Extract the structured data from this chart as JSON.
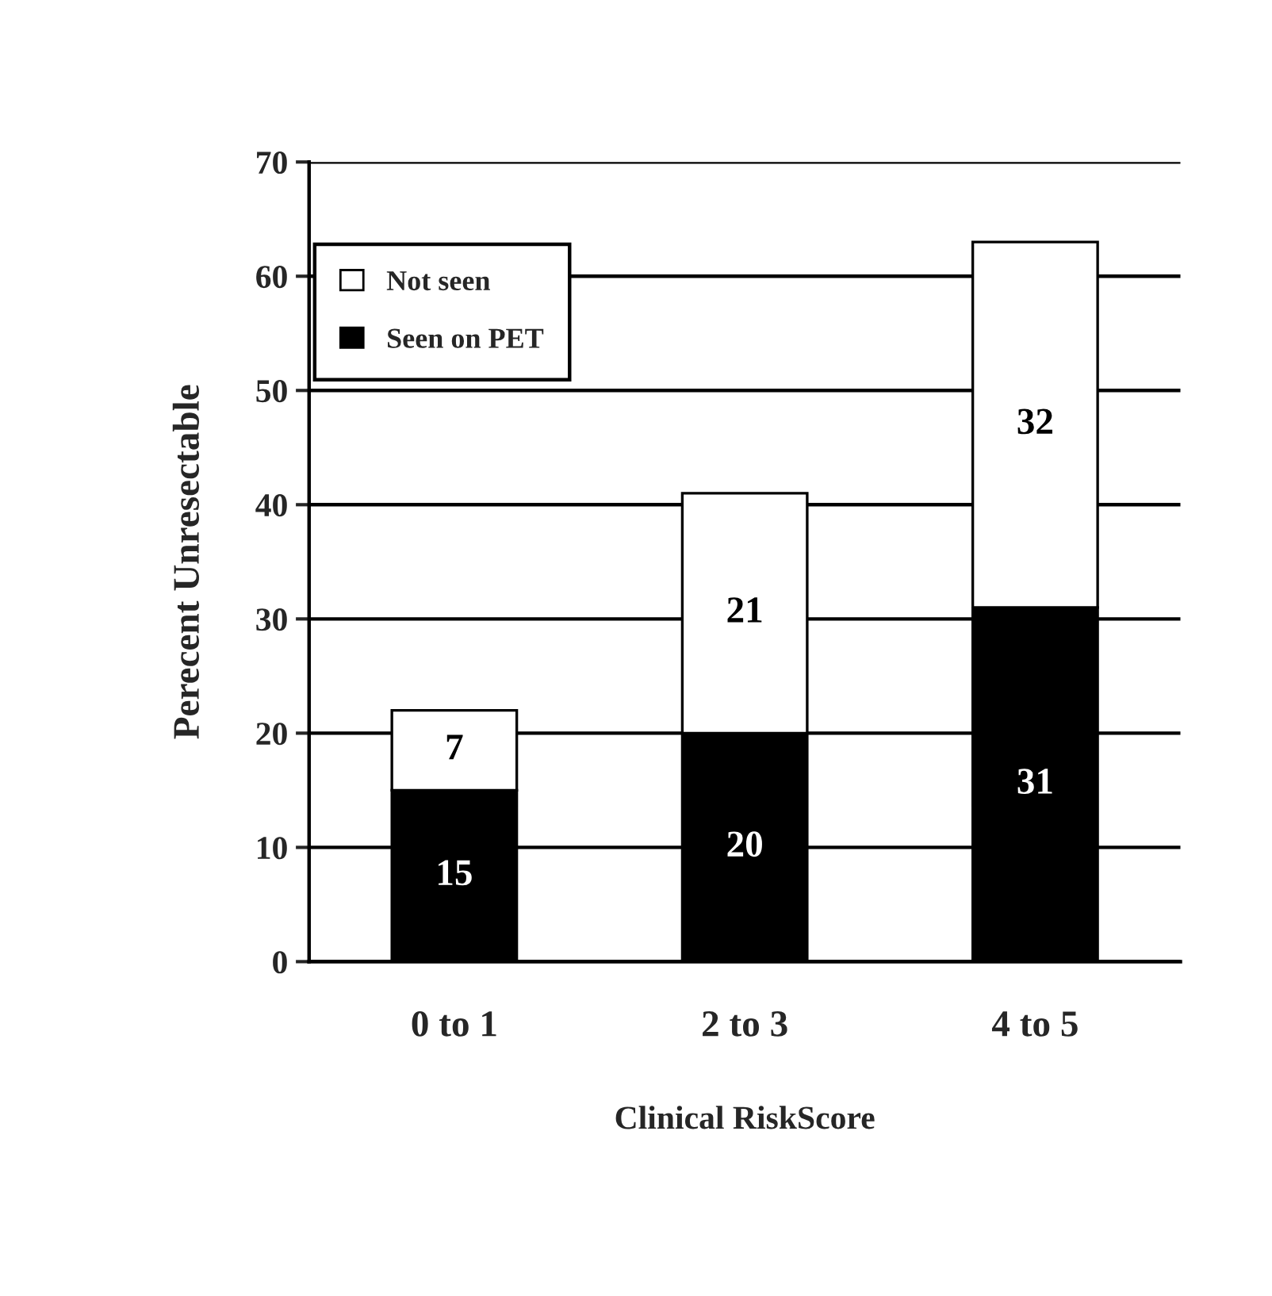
{
  "chart_data": {
    "type": "bar",
    "stacked": true,
    "xlabel": "Clinical RiskScore",
    "ylabel": "Perecent Unresectable",
    "categories": [
      "0 to 1",
      "2 to 3",
      "4 to 5"
    ],
    "series": [
      {
        "name": "Seen on PET",
        "color": "#000000",
        "values": [
          15,
          20,
          31
        ]
      },
      {
        "name": "Not seen",
        "color": "#ffffff",
        "values": [
          7,
          21,
          32
        ]
      }
    ],
    "ylim": [
      0,
      70
    ],
    "yticks": [
      0,
      10,
      20,
      30,
      40,
      50,
      60,
      70
    ],
    "grid": "y",
    "legend": "top left",
    "data_labels": true
  }
}
